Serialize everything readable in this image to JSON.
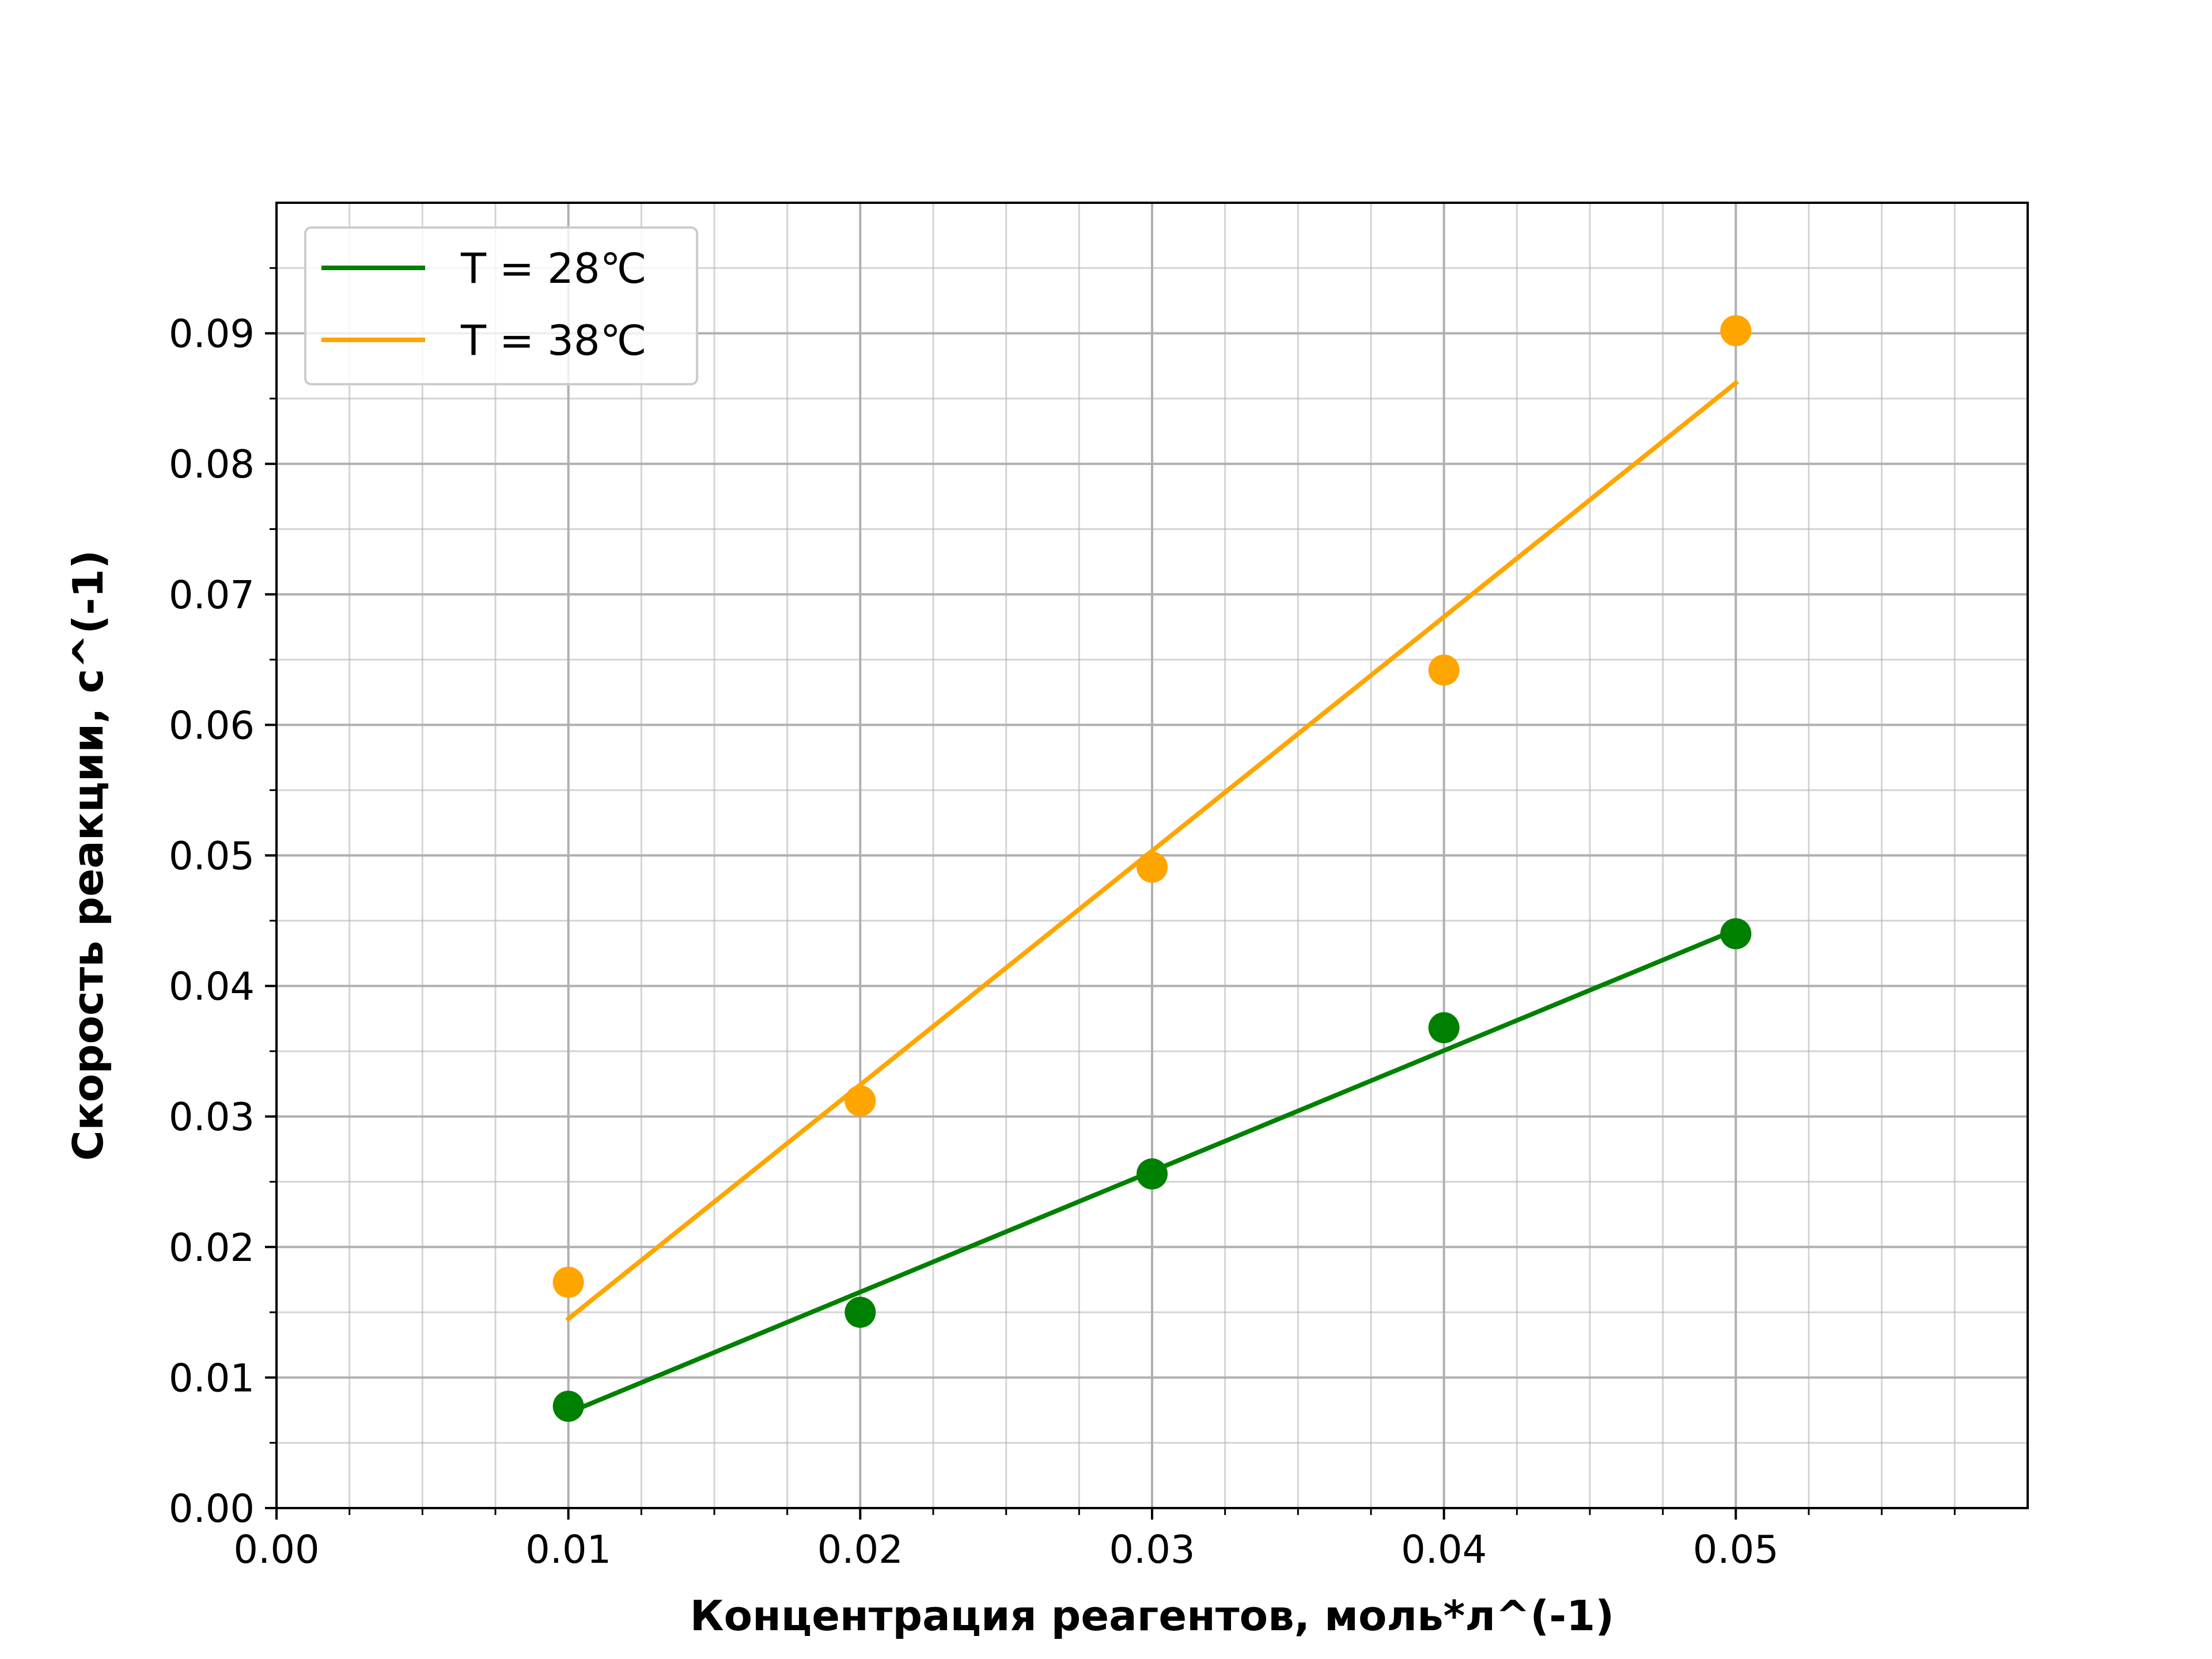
{
  "chart_data": {
    "type": "scatter",
    "title": "",
    "xlabel": "Концентрация реагентов, моль*л^(-1)",
    "ylabel": "Скорость реакции, с^(-1)",
    "xlim": [
      0.0,
      0.06
    ],
    "ylim": [
      0.0,
      0.1
    ],
    "x_major_ticks": [
      0.0,
      0.01,
      0.02,
      0.03,
      0.04,
      0.05
    ],
    "x_tick_labels": [
      "0.00",
      "0.01",
      "0.02",
      "0.03",
      "0.04",
      "0.05"
    ],
    "y_major_ticks": [
      0.0,
      0.01,
      0.02,
      0.03,
      0.04,
      0.05,
      0.06,
      0.07,
      0.08,
      0.09
    ],
    "y_tick_labels": [
      "0.00",
      "0.01",
      "0.02",
      "0.03",
      "0.04",
      "0.05",
      "0.06",
      "0.07",
      "0.08",
      "0.09"
    ],
    "x_minor_step": 0.0025,
    "y_minor_step": 0.005,
    "grid": true,
    "legend_position": "upper left",
    "series": [
      {
        "name": "T = 28℃",
        "color": "#008000",
        "points_x": [
          0.01,
          0.02,
          0.03,
          0.04,
          0.05
        ],
        "points_y": [
          0.0078,
          0.015,
          0.0256,
          0.0368,
          0.044
        ],
        "fit_x": [
          0.01,
          0.05
        ],
        "fit_y": [
          0.0073,
          0.0443
        ]
      },
      {
        "name": "T = 38℃",
        "color": "#FFA500",
        "points_x": [
          0.01,
          0.02,
          0.03,
          0.04,
          0.05
        ],
        "points_y": [
          0.0173,
          0.0312,
          0.0491,
          0.0642,
          0.0902
        ],
        "fit_x": [
          0.01,
          0.05
        ],
        "fit_y": [
          0.0145,
          0.0862
        ]
      }
    ]
  }
}
